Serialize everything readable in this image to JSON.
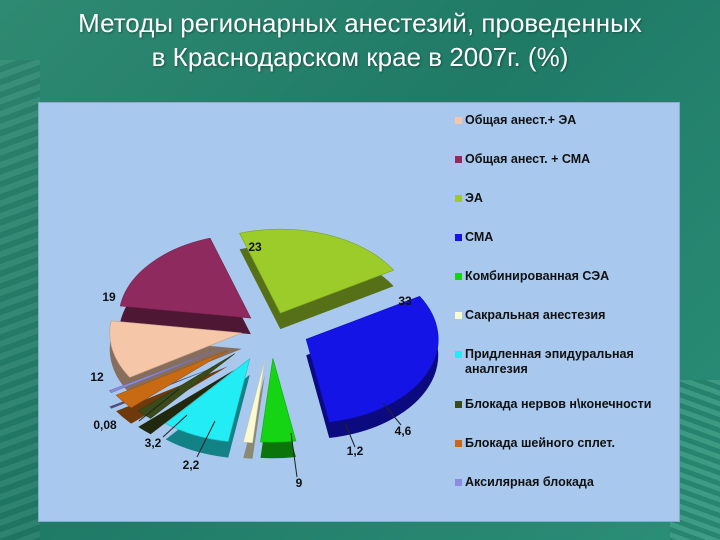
{
  "slide": {
    "title_line1": "Методы регионарных анестезий, проведенных",
    "title_line2": "в Краснодарском крае в 2007г. (%)"
  },
  "chart_data": {
    "type": "pie",
    "title": "Методы регионарных анестезий, проведенных в Краснодарском крае в 2007г. (%)",
    "legend_position": "right",
    "slices": [
      {
        "label": "Общая анест.+ ЭА",
        "value": "12",
        "num": 12,
        "color": "#f5c6a8"
      },
      {
        "label": "Общая анест. + СМА",
        "value": "19",
        "num": 19,
        "color": "#8e2a5e"
      },
      {
        "label": "ЭА",
        "value": "23",
        "num": 23,
        "color": "#9ccc2a"
      },
      {
        "label": "СМА",
        "value": "33",
        "num": 33,
        "color": "#1414e6"
      },
      {
        "label": "Комбинированная СЭА",
        "value": "4,6",
        "num": 4.6,
        "color": "#14d414"
      },
      {
        "label": "Сакральная анестезия",
        "value": "1,2",
        "num": 1.2,
        "color": "#fafad2"
      },
      {
        "label": "Придленная эпидуральная аналгезия",
        "value": "9",
        "num": 9,
        "color": "#22ecf4"
      },
      {
        "label": "Блокада нервов н\\конечности",
        "value": "2,2",
        "num": 2.2,
        "color": "#3a4a18"
      },
      {
        "label": "Блокада шейного сплет.",
        "value": "3,2",
        "num": 3.2,
        "color": "#c86a14"
      },
      {
        "label": "Аксилярная блокада",
        "value": "0,08",
        "num": 0.08,
        "color": "#8c8ce0"
      }
    ]
  }
}
